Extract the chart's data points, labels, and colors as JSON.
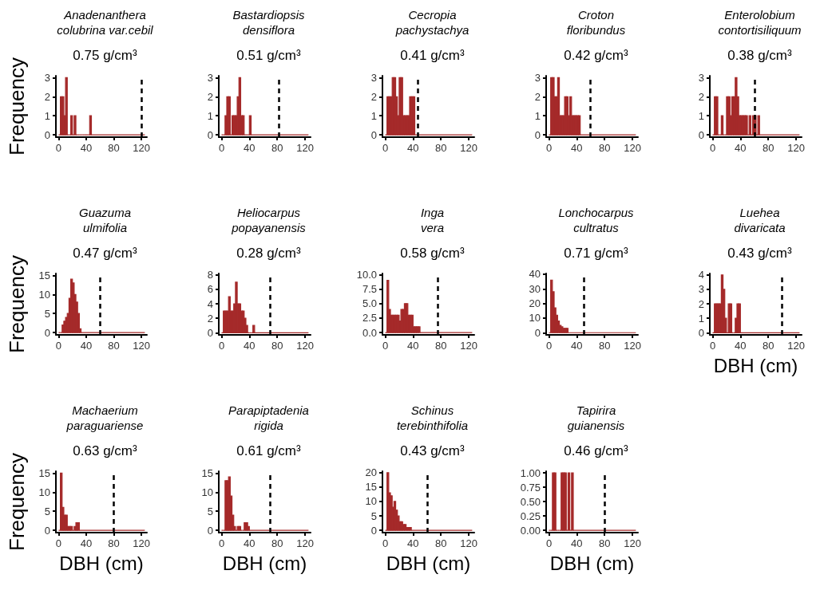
{
  "chart_data": [
    {
      "type": "histogram",
      "title": "Anadenanthera\ncolubrina var.cebil",
      "subtitle": "0.75 g/cm³",
      "ylabel": "Frequency",
      "color": "#a52a2a",
      "bins": [
        0,
        2.5,
        5,
        7.5,
        10,
        12.5,
        15,
        17.5,
        20,
        22.5,
        25,
        27.5,
        30,
        32.5,
        35,
        37.5,
        40,
        42.5,
        45,
        47.5,
        125
      ],
      "values": [
        0,
        2,
        2,
        1,
        3,
        0,
        0,
        1,
        0,
        1,
        0,
        0,
        0,
        0,
        0,
        0,
        0,
        0,
        1,
        0
      ],
      "xlim": [
        -4,
        128
      ],
      "xticks": [
        0,
        40,
        80,
        120
      ],
      "ylim": [
        -0.12,
        3.1
      ],
      "yticks": [
        0,
        1,
        2,
        3
      ],
      "ref_lines": [
        {
          "axis": "x",
          "value": 120,
          "color": "#000000",
          "line_style": "dashed"
        }
      ]
    },
    {
      "type": "histogram",
      "title": "Bastardiopsis\ndensiflora",
      "subtitle": "0.51 g/cm³",
      "color": "#a52a2a",
      "bins": [
        0,
        2.5,
        5,
        7.5,
        10,
        12.5,
        15,
        17.5,
        20,
        22.5,
        25,
        27.5,
        30,
        32.5,
        35,
        37.5,
        40,
        42.5,
        125
      ],
      "values": [
        0,
        0,
        1,
        2,
        2,
        0,
        1,
        1,
        1,
        2,
        3,
        1,
        1,
        0,
        0,
        0,
        1,
        0
      ],
      "xlim": [
        -4,
        128
      ],
      "xticks": [
        0,
        40,
        80,
        120
      ],
      "ylim": [
        -0.12,
        3.1
      ],
      "yticks": [
        0,
        1,
        2,
        3
      ],
      "ref_lines": [
        {
          "axis": "x",
          "value": 82,
          "color": "#000000",
          "line_style": "dashed"
        }
      ]
    },
    {
      "type": "histogram",
      "title": "Cecropia\npachystachya",
      "subtitle": "0.41 g/cm³",
      "color": "#a52a2a",
      "bins": [
        0,
        2.5,
        5,
        7.5,
        10,
        12.5,
        15,
        17.5,
        20,
        22.5,
        25,
        27.5,
        30,
        32.5,
        35,
        37.5,
        40,
        42.5,
        125
      ],
      "values": [
        0,
        2,
        2,
        2,
        3,
        3,
        2,
        1,
        3,
        3,
        1,
        1,
        1,
        1,
        2,
        2,
        2,
        0
      ],
      "xlim": [
        -4,
        128
      ],
      "xticks": [
        0,
        40,
        80,
        120
      ],
      "ylim": [
        -0.12,
        3.1
      ],
      "yticks": [
        0,
        1,
        2,
        3
      ],
      "ref_lines": [
        {
          "axis": "x",
          "value": 47,
          "color": "#000000",
          "line_style": "dashed"
        }
      ]
    },
    {
      "type": "histogram",
      "title": "Croton\nfloribundus",
      "subtitle": "0.42 g/cm³",
      "color": "#a52a2a",
      "bins": [
        0,
        2.5,
        5,
        7.5,
        10,
        12.5,
        15,
        17.5,
        20,
        22.5,
        25,
        27.5,
        30,
        32.5,
        35,
        37.5,
        40,
        42.5,
        45,
        125
      ],
      "values": [
        0,
        3,
        3,
        2,
        2,
        3,
        1,
        1,
        1,
        2,
        2,
        1,
        2,
        1,
        1,
        1,
        1,
        1,
        0
      ],
      "xlim": [
        -4,
        128
      ],
      "xticks": [
        0,
        40,
        80,
        120
      ],
      "ylim": [
        -0.12,
        3.1
      ],
      "yticks": [
        0,
        1,
        2,
        3
      ],
      "ref_lines": [
        {
          "axis": "x",
          "value": 59,
          "color": "#000000",
          "line_style": "dashed"
        }
      ]
    },
    {
      "type": "histogram",
      "title": "Enterolobium\ncontortisiliquum",
      "subtitle": "0.38 g/cm³",
      "color": "#a52a2a",
      "bins": [
        0,
        2.5,
        5,
        7.5,
        10,
        12.5,
        15,
        17.5,
        20,
        22.5,
        25,
        27.5,
        30,
        32.5,
        35,
        37.5,
        40,
        42.5,
        45,
        47.5,
        50,
        52.5,
        55,
        57.5,
        60,
        62.5,
        65,
        67.5,
        125
      ],
      "values": [
        0,
        2,
        2,
        0,
        0,
        1,
        0,
        0,
        2,
        2,
        1,
        2,
        2,
        3,
        2,
        1,
        1,
        1,
        1,
        1,
        0,
        1,
        0,
        1,
        1,
        0,
        1,
        0
      ],
      "xlim": [
        -4,
        128
      ],
      "xticks": [
        0,
        40,
        80,
        120
      ],
      "ylim": [
        -0.12,
        3.1
      ],
      "yticks": [
        0,
        1,
        2,
        3
      ],
      "ref_lines": [
        {
          "axis": "x",
          "value": 60,
          "color": "#000000",
          "line_style": "dashed"
        }
      ]
    },
    {
      "type": "histogram",
      "title": "Guazuma\nulmifolia",
      "subtitle": "0.47 g/cm³",
      "ylabel": "Frequency",
      "color": "#a52a2a",
      "bins": [
        0,
        2.5,
        5,
        7.5,
        10,
        12.5,
        15,
        17.5,
        20,
        22.5,
        25,
        27.5,
        30,
        32.5,
        125
      ],
      "values": [
        0,
        0,
        2,
        3,
        4,
        5,
        9,
        14,
        13,
        10,
        8,
        5,
        1,
        0
      ],
      "xlim": [
        -4,
        128
      ],
      "xticks": [
        0,
        40,
        80,
        120
      ],
      "ylim": [
        -0.6,
        15.5
      ],
      "yticks": [
        0,
        5,
        10,
        15
      ],
      "ref_lines": [
        {
          "axis": "x",
          "value": 60,
          "color": "#000000",
          "line_style": "dashed"
        }
      ]
    },
    {
      "type": "histogram",
      "title": "Heliocarpus\npopayanensis",
      "subtitle": "0.28 g/cm³",
      "color": "#a52a2a",
      "bins": [
        0,
        2.5,
        5,
        7.5,
        10,
        12.5,
        15,
        17.5,
        20,
        22.5,
        25,
        27.5,
        30,
        32.5,
        35,
        37.5,
        40,
        42.5,
        45,
        47.5,
        125
      ],
      "values": [
        0,
        3,
        3,
        3,
        5,
        3,
        3,
        4,
        7,
        4,
        4,
        3,
        3,
        2,
        1,
        0,
        0,
        0,
        1,
        0
      ],
      "xlim": [
        -4,
        128
      ],
      "xticks": [
        0,
        40,
        80,
        120
      ],
      "ylim": [
        -0.3,
        8.2
      ],
      "yticks": [
        0,
        2,
        4,
        6,
        8
      ],
      "ref_lines": [
        {
          "axis": "x",
          "value": 70,
          "color": "#000000",
          "line_style": "dashed"
        }
      ]
    },
    {
      "type": "histogram",
      "title": "Inga\nvera",
      "subtitle": "0.58 g/cm³",
      "color": "#a52a2a",
      "bins": [
        0,
        2.5,
        5,
        7.5,
        10,
        12.5,
        15,
        17.5,
        20,
        22.5,
        25,
        27.5,
        30,
        32.5,
        35,
        37.5,
        40,
        42.5,
        45,
        47.5,
        50,
        125
      ],
      "values": [
        0,
        9,
        4,
        3,
        3,
        3,
        3,
        3,
        2,
        4,
        4,
        5,
        5,
        3,
        3,
        3,
        1,
        1,
        1,
        1,
        0
      ],
      "xlim": [
        -4,
        128
      ],
      "xticks": [
        0,
        40,
        80,
        120
      ],
      "ylim": [
        -0.4,
        10.2
      ],
      "yticks": [
        {
          "value": 0,
          "label": "0.0"
        },
        {
          "value": 2.5,
          "label": "2.5"
        },
        {
          "value": 5,
          "label": "5.0"
        },
        {
          "value": 7.5,
          "label": "7.5"
        },
        {
          "value": 10,
          "label": "10.0"
        }
      ],
      "ref_lines": [
        {
          "axis": "x",
          "value": 75,
          "color": "#000000",
          "line_style": "dashed"
        }
      ]
    },
    {
      "type": "histogram",
      "title": "Lonchocarpus\ncultratus",
      "subtitle": "0.71 g/cm³",
      "color": "#a52a2a",
      "bins": [
        0,
        2.5,
        5,
        7.5,
        10,
        12.5,
        15,
        17.5,
        20,
        22.5,
        25,
        27.5,
        125
      ],
      "values": [
        0,
        36,
        28,
        17,
        12,
        8,
        5,
        4,
        3,
        3,
        3,
        0
      ],
      "xlim": [
        -4,
        128
      ],
      "xticks": [
        0,
        40,
        80,
        120
      ],
      "ylim": [
        -1.5,
        40.5
      ],
      "yticks": [
        0,
        10,
        20,
        30,
        40
      ],
      "ref_lines": [
        {
          "axis": "x",
          "value": 50,
          "color": "#000000",
          "line_style": "dashed"
        }
      ]
    },
    {
      "type": "histogram",
      "title": "Luehea\ndivaricata",
      "subtitle": "0.43 g/cm³",
      "xlabel": "DBH (cm)",
      "color": "#a52a2a",
      "bins": [
        0,
        2.5,
        5,
        7.5,
        10,
        12.5,
        15,
        17.5,
        20,
        22.5,
        25,
        27.5,
        30,
        32.5,
        35,
        37.5,
        40,
        125
      ],
      "values": [
        0,
        2,
        2,
        2,
        2,
        4,
        3,
        1,
        0,
        2,
        2,
        0,
        0,
        1,
        2,
        2,
        0
      ],
      "xlim": [
        -4,
        128
      ],
      "xticks": [
        0,
        40,
        80,
        120
      ],
      "ylim": [
        -0.15,
        4.1
      ],
      "yticks": [
        0,
        1,
        2,
        3,
        4
      ],
      "ref_lines": [
        {
          "axis": "x",
          "value": 100,
          "color": "#000000",
          "line_style": "dashed"
        }
      ]
    },
    {
      "type": "histogram",
      "title": "Machaerium\nparaguariense",
      "subtitle": "0.63 g/cm³",
      "ylabel": "Frequency",
      "xlabel": "DBH (cm)",
      "color": "#a52a2a",
      "bins": [
        0,
        2.5,
        5,
        7.5,
        10,
        12.5,
        15,
        17.5,
        20,
        22.5,
        25,
        27.5,
        30,
        125
      ],
      "values": [
        0,
        15,
        6,
        4,
        4,
        1,
        1,
        1,
        0,
        1,
        2,
        2,
        0
      ],
      "xlim": [
        -4,
        128
      ],
      "xticks": [
        0,
        40,
        80,
        120
      ],
      "ylim": [
        -0.6,
        15.5
      ],
      "yticks": [
        0,
        5,
        10,
        15
      ],
      "ref_lines": [
        {
          "axis": "x",
          "value": 80,
          "color": "#000000",
          "line_style": "dashed"
        }
      ]
    },
    {
      "type": "histogram",
      "title": "Parapiptadenia\nrigida",
      "subtitle": "0.61 g/cm³",
      "xlabel": "DBH (cm)",
      "color": "#a52a2a",
      "bins": [
        0,
        2.5,
        5,
        7.5,
        10,
        12.5,
        15,
        17.5,
        20,
        22.5,
        25,
        27.5,
        30,
        32.5,
        35,
        37.5,
        40,
        125
      ],
      "values": [
        0,
        0,
        13,
        13,
        14,
        9,
        4,
        1,
        0,
        1,
        1,
        0,
        0,
        2,
        2,
        1,
        0
      ],
      "xlim": [
        -4,
        128
      ],
      "xticks": [
        0,
        40,
        80,
        120
      ],
      "ylim": [
        -0.6,
        15.5
      ],
      "yticks": [
        0,
        5,
        10,
        15
      ],
      "ref_lines": [
        {
          "axis": "x",
          "value": 70,
          "color": "#000000",
          "line_style": "dashed"
        }
      ]
    },
    {
      "type": "histogram",
      "title": "Schinus\nterebinthifolia",
      "subtitle": "0.43 g/cm³",
      "xlabel": "DBH (cm)",
      "color": "#a52a2a",
      "bins": [
        0,
        2.5,
        5,
        7.5,
        10,
        12.5,
        15,
        17.5,
        20,
        22.5,
        25,
        27.5,
        30,
        32.5,
        35,
        37.5,
        125
      ],
      "values": [
        0,
        20,
        13,
        12,
        8,
        10,
        7,
        5,
        3,
        3,
        2,
        2,
        1,
        1,
        1,
        0
      ],
      "xlim": [
        -4,
        128
      ],
      "xticks": [
        0,
        40,
        80,
        120
      ],
      "ylim": [
        -0.8,
        20.5
      ],
      "yticks": [
        0,
        5,
        10,
        15,
        20
      ],
      "ref_lines": [
        {
          "axis": "x",
          "value": 60,
          "color": "#000000",
          "line_style": "dashed"
        }
      ]
    },
    {
      "type": "histogram",
      "title": "Tapirira\nguianensis",
      "subtitle": "0.46 g/cm³",
      "xlabel": "DBH (cm)",
      "color": "#a52a2a",
      "bins": [
        0,
        2.5,
        5,
        7.5,
        10,
        12.5,
        15,
        17.5,
        20,
        22.5,
        25,
        27.5,
        30,
        32.5,
        35,
        125
      ],
      "values": [
        0,
        0,
        1,
        1,
        0,
        0,
        0,
        1,
        1,
        1,
        0,
        1,
        0,
        1,
        0
      ],
      "xlim": [
        -4,
        128
      ],
      "xticks": [
        0,
        40,
        80,
        120
      ],
      "ylim": [
        -0.04,
        1.03
      ],
      "yticks": [
        {
          "value": 0,
          "label": "0.00"
        },
        {
          "value": 0.25,
          "label": "0.25"
        },
        {
          "value": 0.5,
          "label": "0.50"
        },
        {
          "value": 0.75,
          "label": "0.75"
        },
        {
          "value": 1,
          "label": "1.00"
        }
      ],
      "ref_lines": [
        {
          "axis": "x",
          "value": 80,
          "color": "#000000",
          "line_style": "dashed"
        }
      ]
    }
  ]
}
